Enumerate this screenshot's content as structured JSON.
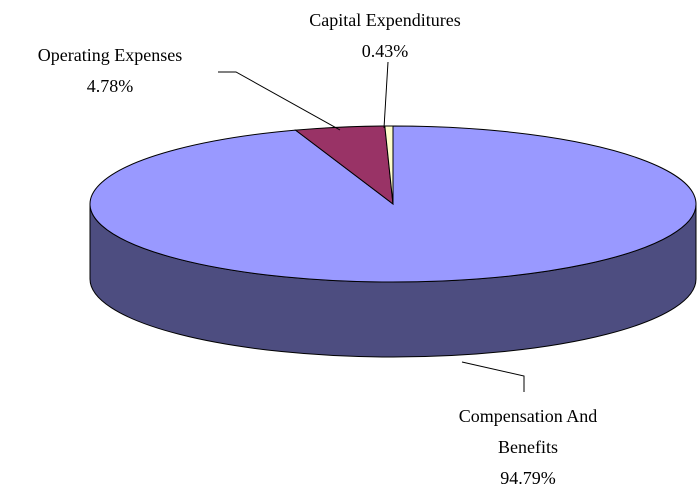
{
  "chart_data": {
    "type": "pie3d",
    "categories": [
      "Compensation And Benefits",
      "Operating Expenses",
      "Capital Expenditures"
    ],
    "values": [
      94.79,
      4.78,
      0.43
    ],
    "value_labels": [
      "94.79%",
      "4.78%",
      "0.43%"
    ],
    "colors": [
      "#9999ff",
      "#993366",
      "#ffffcc"
    ]
  }
}
